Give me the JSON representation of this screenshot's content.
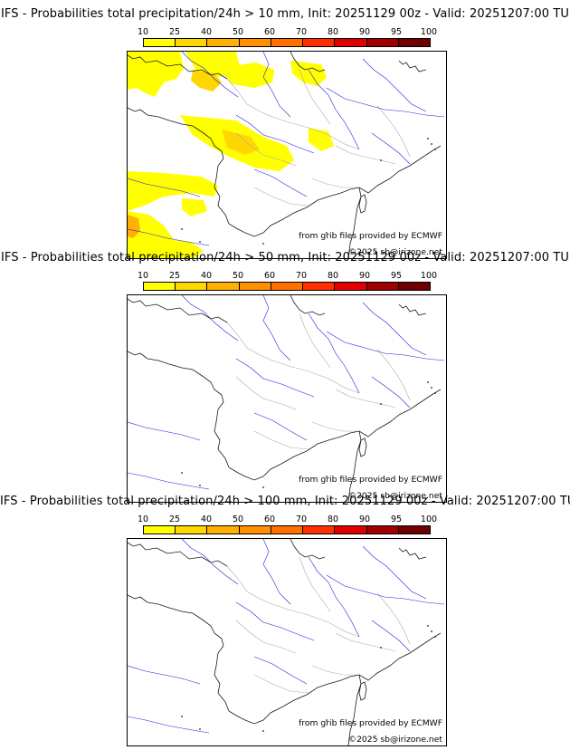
{
  "colors": {
    "scale": [
      "#ffff00",
      "#ffd700",
      "#ffb000",
      "#ff9000",
      "#ff7000",
      "#ff3000",
      "#e00000",
      "#a00000",
      "#700000"
    ],
    "coast": "#1a1a1a",
    "rivers": "#2222dd",
    "borders": "#aaaaaa"
  },
  "legend": {
    "ticks": [
      "10",
      "25",
      "40",
      "50",
      "60",
      "70",
      "80",
      "90",
      "95",
      "100"
    ]
  },
  "panels": [
    {
      "title": "IFS - Probabilities total precipitation/24h > 10 mm, Init: 20251129 00z - Valid: 20251207:00 TU",
      "credit": "from grib files provided by ECMWF",
      "copyright": "©2025 sb@irizone.net",
      "threshold_mm": 10,
      "has_precip": true
    },
    {
      "title": "IFS - Probabilities total precipitation/24h > 50 mm, Init: 20251129 00z - Valid: 20251207:00 TU",
      "credit": "from grib files provided by ECMWF",
      "copyright": "©2025 sb@irizone.net",
      "threshold_mm": 50,
      "has_precip": false
    },
    {
      "title": "IFS - Probabilities total precipitation/24h > 100 mm, Init: 20251129 00z - Valid: 20251207:00 TU",
      "credit": "from grib files provided by ECMWF",
      "copyright": "©2025 sb@irizone.net",
      "threshold_mm": 100,
      "has_precip": false
    }
  ]
}
